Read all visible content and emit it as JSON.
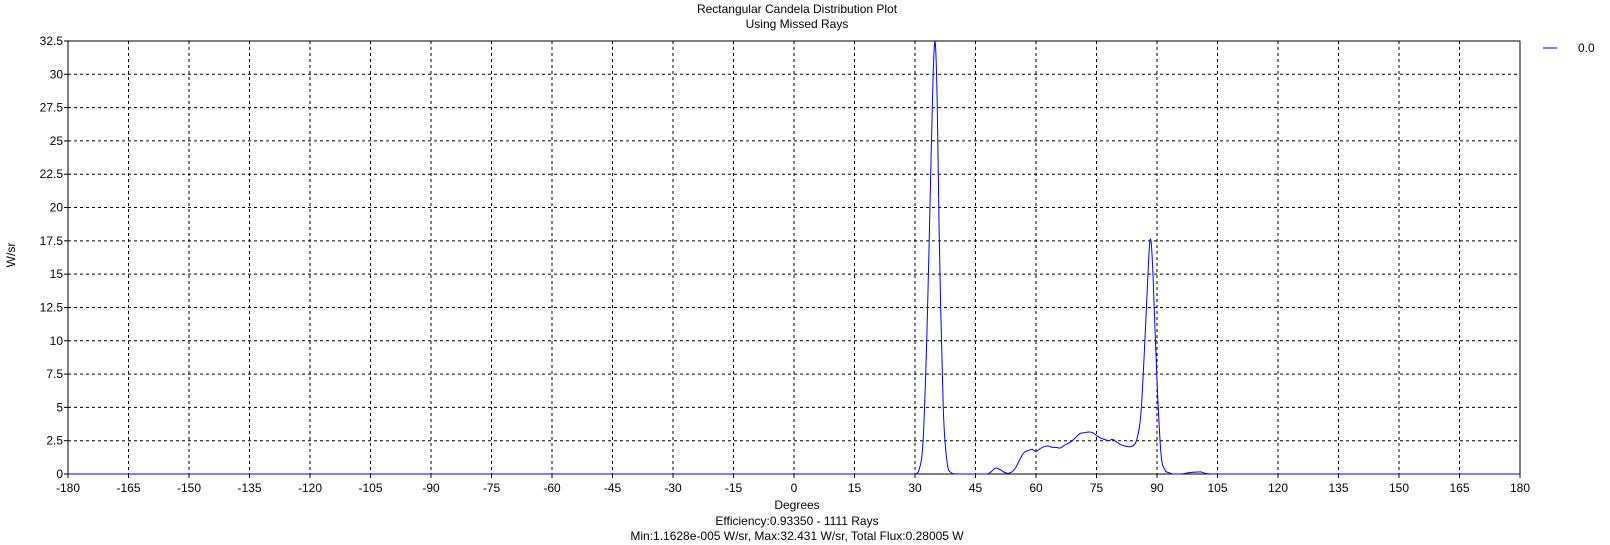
{
  "chart_data": {
    "type": "line",
    "title": "Rectangular Candela Distribution Plot",
    "subtitle": "Using Missed Rays",
    "xlabel": "Degrees",
    "ylabel": "W/sr",
    "xlim": [
      -180,
      180
    ],
    "ylim": [
      0,
      32.5
    ],
    "x_ticks": [
      -180,
      -165,
      -150,
      -135,
      -120,
      -105,
      -90,
      -75,
      -60,
      -45,
      -30,
      -15,
      0,
      15,
      30,
      45,
      60,
      75,
      90,
      105,
      120,
      135,
      150,
      165,
      180
    ],
    "y_ticks": [
      0,
      2.5,
      5,
      7.5,
      10,
      12.5,
      15,
      17.5,
      20,
      22.5,
      25,
      27.5,
      30,
      32.5
    ],
    "grid": true,
    "legend_position": "top-right",
    "series": [
      {
        "name": "0.0",
        "color": "#0000ff",
        "x": [
          -180,
          -90,
          0,
          28,
          30,
          31,
          32,
          33,
          34,
          34.5,
          35,
          35.5,
          36,
          37,
          38,
          39,
          40,
          42,
          46,
          48,
          49,
          50,
          51,
          52,
          53,
          54,
          55,
          56,
          57,
          58,
          59,
          60,
          61,
          62,
          63,
          64,
          65,
          66,
          67,
          68,
          69,
          70,
          71,
          72,
          73,
          74,
          75,
          76,
          77,
          78,
          79,
          80,
          81,
          82,
          83,
          84,
          85,
          86,
          87,
          88,
          88.5,
          89,
          90,
          91,
          92,
          93,
          94,
          96,
          98,
          100,
          101,
          102,
          104,
          110,
          140,
          180
        ],
        "y": [
          0,
          0,
          0,
          0,
          0,
          0.3,
          2.5,
          11,
          24,
          30,
          32.4,
          28,
          18,
          5,
          0.8,
          0.1,
          0,
          0,
          0,
          0,
          0.2,
          0.45,
          0.35,
          0.15,
          0.05,
          0.15,
          0.5,
          1.1,
          1.6,
          1.75,
          1.85,
          1.7,
          1.9,
          2.05,
          2.1,
          2.0,
          2.0,
          1.95,
          2.15,
          2.3,
          2.5,
          2.8,
          3.05,
          3.1,
          3.15,
          3.1,
          2.9,
          2.7,
          2.6,
          2.5,
          2.6,
          2.4,
          2.2,
          2.1,
          2.05,
          2.1,
          2.6,
          4.5,
          10,
          16.5,
          17.5,
          15,
          7,
          1.5,
          0.3,
          0.1,
          0,
          0,
          0.1,
          0.15,
          0.15,
          0.05,
          0,
          0,
          0,
          0
        ]
      }
    ],
    "footer": {
      "efficiency": "Efficiency:0.93350 - 1111 Rays",
      "stats": "Min:1.1628e-005 W/sr, Max:32.431 W/sr, Total Flux:0.28005 W"
    }
  }
}
